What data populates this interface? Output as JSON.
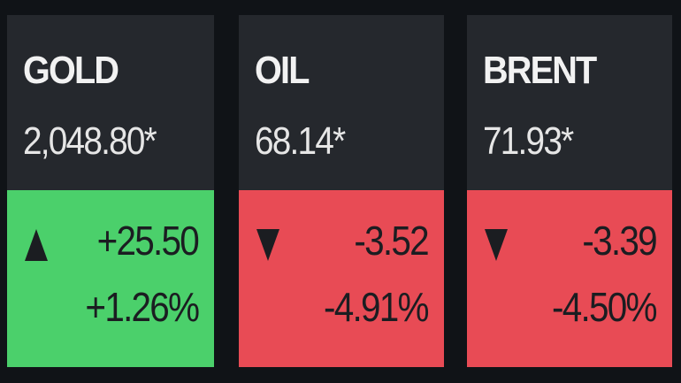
{
  "cards": [
    {
      "name": "GOLD",
      "price": "2,048.80*",
      "change": "+25.50",
      "change_pct": "+1.26%"
    },
    {
      "name": "OIL",
      "price": "68.14*",
      "change": "-3.52",
      "change_pct": "-4.91%"
    },
    {
      "name": "BRENT",
      "price": "71.93*",
      "change": "-3.39",
      "change_pct": "-4.50%"
    }
  ]
}
